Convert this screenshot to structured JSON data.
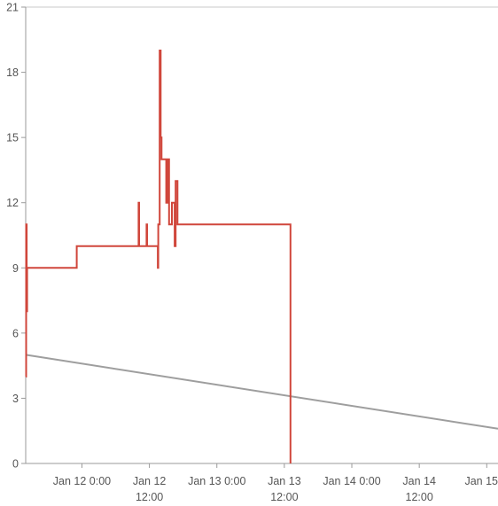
{
  "chart_data": {
    "type": "line",
    "title": "",
    "xlabel": "",
    "ylabel": "",
    "ylim": [
      0,
      21
    ],
    "xlim": [
      "2024-01-11T14:00",
      "2024-01-15T02:00"
    ],
    "y_ticks": [
      "0",
      "3",
      "6",
      "9",
      "12",
      "15",
      "18",
      "21"
    ],
    "x_ticks": [
      {
        "value": "2024-01-12T00:00",
        "lines": [
          "Jan 12 0:00"
        ]
      },
      {
        "value": "2024-01-12T12:00",
        "lines": [
          "Jan 12",
          "12:00"
        ]
      },
      {
        "value": "2024-01-13T00:00",
        "lines": [
          "Jan 13 0:00"
        ]
      },
      {
        "value": "2024-01-13T12:00",
        "lines": [
          "Jan 13",
          "12:00"
        ]
      },
      {
        "value": "2024-01-14T00:00",
        "lines": [
          "Jan 14 0:00"
        ]
      },
      {
        "value": "2024-01-14T12:00",
        "lines": [
          "Jan 14",
          "12:00"
        ]
      },
      {
        "value": "2024-01-15T00:00",
        "lines": [
          "Jan 15"
        ]
      }
    ],
    "grid": false,
    "legend": "none",
    "series": [
      {
        "color": "#d0463b",
        "step": true,
        "points": [
          [
            "2024-01-11T14:00",
            4
          ],
          [
            "2024-01-11T14:05",
            11
          ],
          [
            "2024-01-11T14:10",
            7
          ],
          [
            "2024-01-11T14:15",
            9
          ],
          [
            "2024-01-11T23:00",
            9
          ],
          [
            "2024-01-11T23:05",
            10
          ],
          [
            "2024-01-12T10:00",
            10
          ],
          [
            "2024-01-12T10:05",
            12
          ],
          [
            "2024-01-12T10:10",
            10
          ],
          [
            "2024-01-12T11:30",
            11
          ],
          [
            "2024-01-12T11:35",
            10
          ],
          [
            "2024-01-12T13:30",
            9
          ],
          [
            "2024-01-12T13:35",
            11
          ],
          [
            "2024-01-12T13:50",
            19
          ],
          [
            "2024-01-12T14:00",
            15
          ],
          [
            "2024-01-12T14:10",
            14
          ],
          [
            "2024-01-12T15:00",
            12
          ],
          [
            "2024-01-12T15:15",
            14
          ],
          [
            "2024-01-12T15:30",
            11
          ],
          [
            "2024-01-12T16:00",
            12
          ],
          [
            "2024-01-12T16:30",
            10
          ],
          [
            "2024-01-12T16:40",
            13
          ],
          [
            "2024-01-12T17:00",
            11
          ],
          [
            "2024-01-13T13:00",
            11
          ],
          [
            "2024-01-13T13:05",
            0
          ]
        ]
      },
      {
        "color": "#9e9e9e",
        "step": false,
        "points": [
          [
            "2024-01-11T14:00",
            5
          ],
          [
            "2024-01-15T02:00",
            1.6
          ]
        ]
      }
    ]
  }
}
